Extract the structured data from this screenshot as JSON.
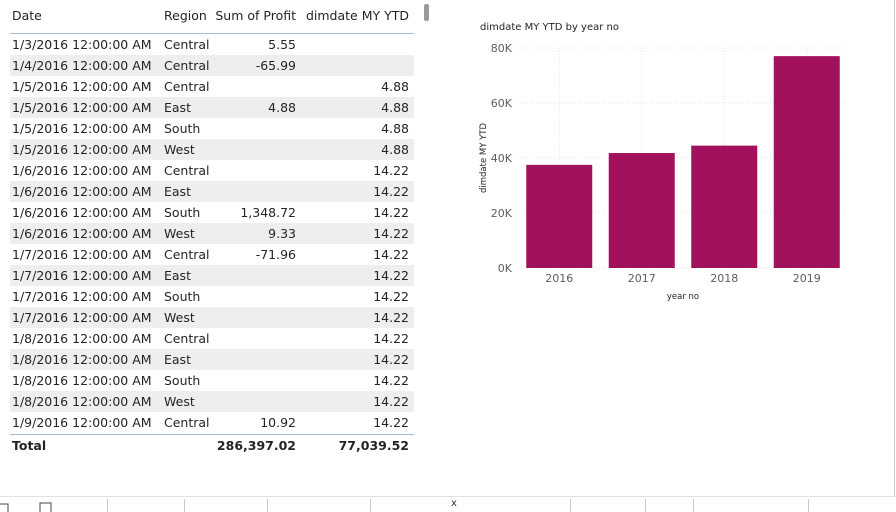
{
  "table": {
    "columns": [
      "Date",
      "Region",
      "Sum of Profit",
      "dimdate MY YTD"
    ],
    "rows": [
      [
        "1/3/2016 12:00:00 AM",
        "Central",
        "5.55",
        ""
      ],
      [
        "1/4/2016 12:00:00 AM",
        "Central",
        "-65.99",
        ""
      ],
      [
        "1/5/2016 12:00:00 AM",
        "Central",
        "",
        "4.88"
      ],
      [
        "1/5/2016 12:00:00 AM",
        "East",
        "4.88",
        "4.88"
      ],
      [
        "1/5/2016 12:00:00 AM",
        "South",
        "",
        "4.88"
      ],
      [
        "1/5/2016 12:00:00 AM",
        "West",
        "",
        "4.88"
      ],
      [
        "1/6/2016 12:00:00 AM",
        "Central",
        "",
        "14.22"
      ],
      [
        "1/6/2016 12:00:00 AM",
        "East",
        "",
        "14.22"
      ],
      [
        "1/6/2016 12:00:00 AM",
        "South",
        "1,348.72",
        "14.22"
      ],
      [
        "1/6/2016 12:00:00 AM",
        "West",
        "9.33",
        "14.22"
      ],
      [
        "1/7/2016 12:00:00 AM",
        "Central",
        "-71.96",
        "14.22"
      ],
      [
        "1/7/2016 12:00:00 AM",
        "East",
        "",
        "14.22"
      ],
      [
        "1/7/2016 12:00:00 AM",
        "South",
        "",
        "14.22"
      ],
      [
        "1/7/2016 12:00:00 AM",
        "West",
        "",
        "14.22"
      ],
      [
        "1/8/2016 12:00:00 AM",
        "Central",
        "",
        "14.22"
      ],
      [
        "1/8/2016 12:00:00 AM",
        "East",
        "",
        "14.22"
      ],
      [
        "1/8/2016 12:00:00 AM",
        "South",
        "",
        "14.22"
      ],
      [
        "1/8/2016 12:00:00 AM",
        "West",
        "",
        "14.22"
      ],
      [
        "1/9/2016 12:00:00 AM",
        "Central",
        "10.92",
        "14.22"
      ]
    ],
    "total": {
      "label": "Total",
      "profit": "286,397.02",
      "ytd": "77,039.52"
    }
  },
  "chart_data": {
    "type": "bar",
    "title": "dimdate MY YTD by year no",
    "xlabel": "year no",
    "ylabel": "dimdate MY YTD",
    "categories": [
      "2016",
      "2017",
      "2018",
      "2019"
    ],
    "values": [
      37500,
      41800,
      44500,
      77040
    ],
    "ylim": [
      0,
      80000
    ],
    "yticks": [
      {
        "value": 0,
        "label": "0K"
      },
      {
        "value": 20000,
        "label": "20K"
      },
      {
        "value": 40000,
        "label": "40K"
      },
      {
        "value": 60000,
        "label": "60K"
      },
      {
        "value": 80000,
        "label": "80K"
      }
    ],
    "grid": true,
    "bar_color": "#a2115c"
  },
  "bottom_bar": {
    "close_glyph": "x"
  }
}
